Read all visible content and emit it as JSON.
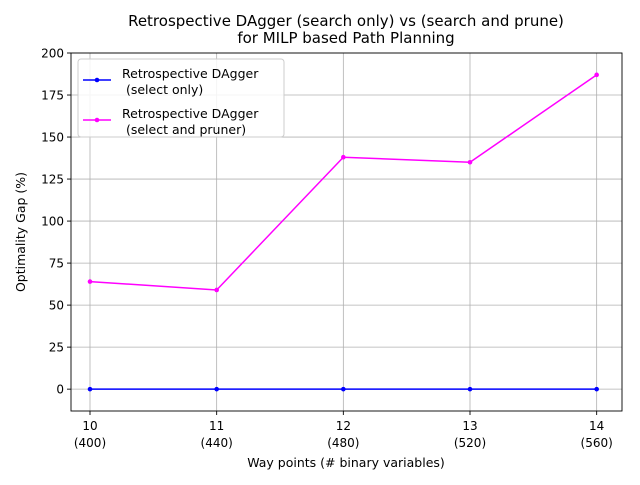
{
  "chart_data": {
    "type": "line",
    "title_lines": [
      "Retrospective DAgger (search only) vs (search and prune)",
      "for MILP based Path Planning"
    ],
    "xlabel": "Way points (# binary variables)",
    "ylabel": "Optimality Gap (%)",
    "categories": [
      [
        "10",
        "(400)"
      ],
      [
        "11",
        "(440)"
      ],
      [
        "12",
        "(480)"
      ],
      [
        "13",
        "(520)"
      ],
      [
        "14",
        "(560)"
      ]
    ],
    "x": [
      10,
      11,
      12,
      13,
      14
    ],
    "xlim": [
      9.85,
      14.2
    ],
    "ylim": [
      -13,
      200
    ],
    "yticks": [
      0,
      25,
      50,
      75,
      100,
      125,
      150,
      175,
      200
    ],
    "grid": true,
    "legend_position": "top-left",
    "series": [
      {
        "name_lines": [
          "Retrospective DAgger",
          " (select only)"
        ],
        "color": "#0000ff",
        "marker": "point",
        "values": [
          0,
          0,
          0,
          0,
          0
        ]
      },
      {
        "name_lines": [
          "Retrospective DAgger",
          " (select and pruner)"
        ],
        "color": "#ff00ff",
        "marker": "point",
        "values": [
          64,
          59,
          138,
          135,
          187
        ]
      }
    ]
  }
}
